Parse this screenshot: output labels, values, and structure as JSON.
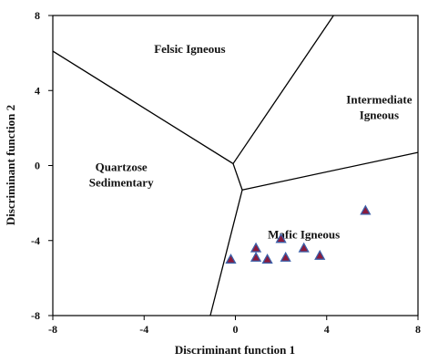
{
  "chart_data": {
    "type": "scatter",
    "xlabel": "Discriminant function 1",
    "ylabel": "Discriminant function 2",
    "xlim": [
      -8,
      8
    ],
    "ylim": [
      -8,
      8
    ],
    "xticks": [
      -8,
      -4,
      0,
      4,
      8
    ],
    "yticks": [
      -8,
      -4,
      0,
      4,
      8
    ],
    "xtick_labels": [
      "-8",
      "-4",
      "0",
      "4",
      "8"
    ],
    "ytick_labels": [
      "-8",
      "-4",
      "0",
      "4",
      "8"
    ],
    "grid": false,
    "region_labels": [
      {
        "lines": [
          "Felsic Igneous"
        ],
        "x": -2.0,
        "y": 6.0
      },
      {
        "lines": [
          "Intermediate",
          "Igneous"
        ],
        "x": 6.3,
        "y": 3.3
      },
      {
        "lines": [
          "Quartzose",
          "Sedimentary"
        ],
        "x": -5.0,
        "y": -0.3
      },
      {
        "lines": [
          "Mafic Igneous"
        ],
        "x": 3.0,
        "y": -3.9
      }
    ],
    "boundaries": [
      [
        [
          -8.0,
          6.1
        ],
        [
          -0.1,
          0.1
        ]
      ],
      [
        [
          -0.1,
          0.1
        ],
        [
          4.3,
          8.0
        ]
      ],
      [
        [
          -0.1,
          0.1
        ],
        [
          0.3,
          -1.3
        ]
      ],
      [
        [
          0.3,
          -1.3
        ],
        [
          8.0,
          0.7
        ]
      ],
      [
        [
          0.3,
          -1.3
        ],
        [
          -1.1,
          -8.0
        ]
      ]
    ],
    "points": [
      {
        "x": -0.2,
        "y": -5.0
      },
      {
        "x": 0.9,
        "y": -4.4
      },
      {
        "x": 0.9,
        "y": -4.9
      },
      {
        "x": 1.4,
        "y": -5.0
      },
      {
        "x": 2.0,
        "y": -3.9
      },
      {
        "x": 2.2,
        "y": -4.9
      },
      {
        "x": 3.0,
        "y": -4.4
      },
      {
        "x": 3.7,
        "y": -4.8
      },
      {
        "x": 5.7,
        "y": -2.4
      }
    ],
    "marker": {
      "shape": "triangle",
      "fill": "#8b1a3c",
      "stroke": "#3b5fa8"
    }
  }
}
